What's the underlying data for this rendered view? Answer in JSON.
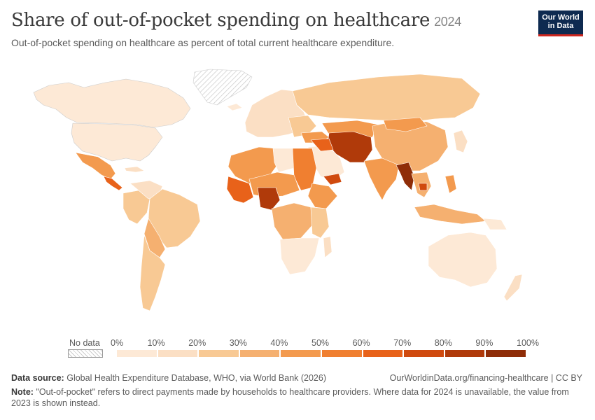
{
  "title": "Share of out-of-pocket spending on healthcare",
  "year": "2024",
  "subtitle": "Out-of-pocket spending on healthcare as percent of total current healthcare expenditure.",
  "logo": {
    "line1": "Our World",
    "line2": "in Data"
  },
  "legend": {
    "no_data_label": "No data",
    "ticks": [
      "0%",
      "10%",
      "20%",
      "30%",
      "40%",
      "50%",
      "60%",
      "70%",
      "80%",
      "90%",
      "100%"
    ],
    "colors": [
      "#fde9d6",
      "#fbdfc4",
      "#f8c994",
      "#f5b070",
      "#f39a4e",
      "#f07f30",
      "#e8621a",
      "#d04a0e",
      "#b03a0a",
      "#8f2d08"
    ]
  },
  "source": {
    "label": "Data source:",
    "text": "Global Health Expenditure Database, WHO, via World Bank (2026)"
  },
  "url": "OurWorldinData.org/financing-healthcare | CC BY",
  "note": {
    "label": "Note:",
    "text": "\"Out-of-pocket\" refers to direct payments made by households to healthcare providers. Where data for 2024 is unavailable, the value from 2023 is shown instead."
  },
  "chart_data": {
    "type": "choropleth",
    "unit": "%",
    "bins": [
      0,
      10,
      20,
      30,
      40,
      50,
      60,
      70,
      80,
      90,
      100
    ],
    "regions": [
      {
        "region": "Canada",
        "bin": "10-20%"
      },
      {
        "region": "United States",
        "bin": "10-20%"
      },
      {
        "region": "Mexico",
        "bin": "30-40%"
      },
      {
        "region": "Central America",
        "bin": "30-50%"
      },
      {
        "region": "Brazil",
        "bin": "20-30%"
      },
      {
        "region": "South America (other)",
        "bin": "20-40%"
      },
      {
        "region": "Russia",
        "bin": "20-30%"
      },
      {
        "region": "Europe",
        "bin": "10-20%"
      },
      {
        "region": "China",
        "bin": "30-40%"
      },
      {
        "region": "India",
        "bin": "40-50%"
      },
      {
        "region": "Pakistan / Afghanistan",
        "bin": "60-80%"
      },
      {
        "region": "Myanmar",
        "bin": "70-80%"
      },
      {
        "region": "Nigeria",
        "bin": "70-80%"
      },
      {
        "region": "Sahel / North Africa",
        "bin": "40-50%"
      },
      {
        "region": "Southern Africa",
        "bin": "0-20%"
      },
      {
        "region": "Australia",
        "bin": "10-20%"
      },
      {
        "region": "Southeast Asia",
        "bin": "30-50%"
      },
      {
        "region": "Greenland",
        "bin": "No data"
      }
    ]
  }
}
